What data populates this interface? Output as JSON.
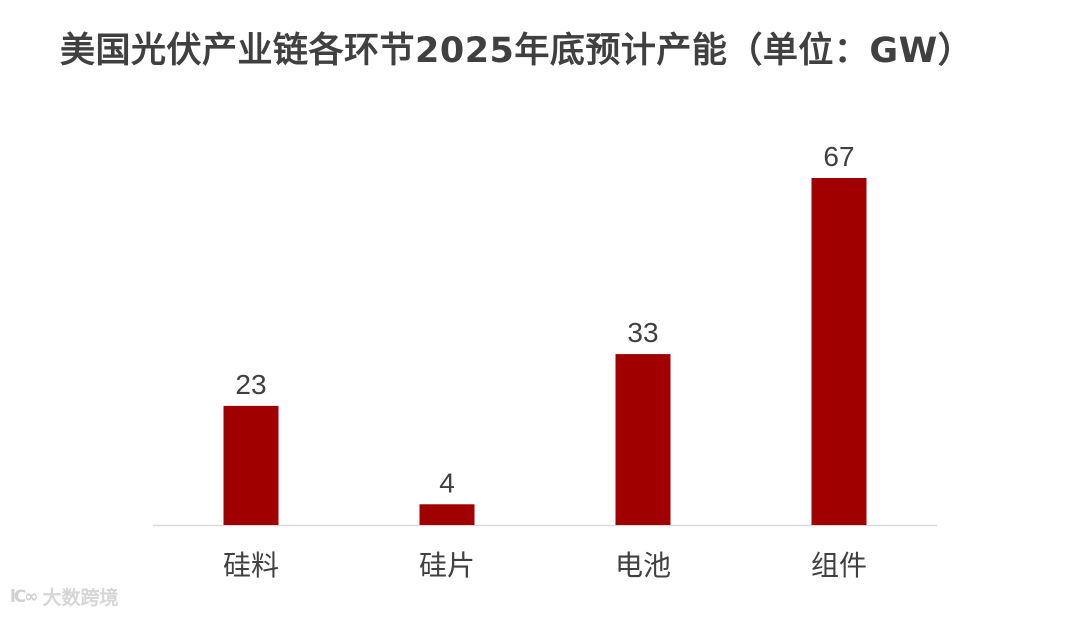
{
  "chart_data": {
    "type": "bar",
    "title": "美国光伏产业链各环节2025年底预计产能（单位：GW）",
    "categories": [
      "硅料",
      "硅片",
      "电池",
      "组件"
    ],
    "values": [
      23,
      4,
      33,
      67
    ],
    "ylim": [
      0,
      67
    ],
    "grid": false,
    "legend": "none",
    "bar_color": "#A10000",
    "axis_color": "#D9D9D9",
    "label_color": "#404040"
  },
  "watermark": {
    "text": "大数跨境",
    "logo_icon": "dashuju-logo-icon"
  }
}
